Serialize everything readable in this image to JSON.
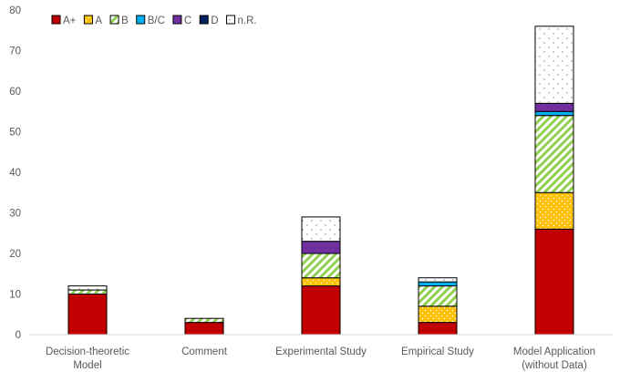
{
  "chart_data": {
    "type": "bar",
    "stacked": true,
    "title": "",
    "xlabel": "",
    "ylabel": "",
    "ylim": [
      0,
      80
    ],
    "yticks": [
      0,
      10,
      20,
      30,
      40,
      50,
      60,
      70,
      80
    ],
    "grid": false,
    "legend_position": "top-left",
    "categories": [
      [
        "Decision-theoretic",
        "Model"
      ],
      [
        "Comment"
      ],
      [
        "Experimental Study"
      ],
      [
        "Empirical Study"
      ],
      [
        "Model Application",
        "(without Data)"
      ]
    ],
    "series": [
      {
        "name": "A+",
        "color": "#c00000",
        "pattern": "solid",
        "values": [
          10,
          3,
          12,
          3,
          26
        ]
      },
      {
        "name": "A",
        "color": "#ffc000",
        "pattern": "dots",
        "values": [
          0,
          0,
          2,
          4,
          9
        ]
      },
      {
        "name": "B",
        "color": "#92d050",
        "pattern": "diagonal",
        "values": [
          1,
          1,
          6,
          5,
          19
        ]
      },
      {
        "name": "B/C",
        "color": "#00b0f0",
        "pattern": "solid",
        "values": [
          0,
          0,
          0,
          1,
          1
        ]
      },
      {
        "name": "C",
        "color": "#7030a0",
        "pattern": "solid",
        "values": [
          0,
          0,
          3,
          0,
          2
        ]
      },
      {
        "name": "D",
        "color": "#002060",
        "pattern": "solid",
        "values": [
          0,
          0,
          0,
          0,
          0
        ]
      },
      {
        "name": "n.R.",
        "color": "#ffffff",
        "pattern": "sparse-dots",
        "values": [
          1,
          0,
          6,
          1,
          19
        ]
      }
    ]
  }
}
